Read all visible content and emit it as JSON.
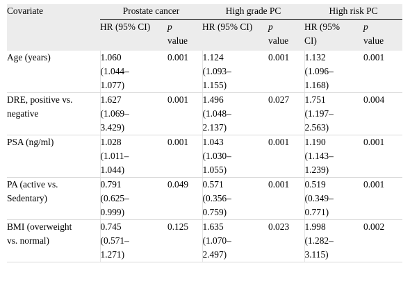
{
  "header": {
    "covariate": "Covariate",
    "groups": [
      "Prostate cancer",
      "High grade PC",
      "High risk PC"
    ],
    "hr": [
      "HR (95% CI)",
      "HR (95% CI)",
      "HR (95%",
      "CI)"
    ],
    "p_italic": "p",
    "p_value": "value"
  },
  "rows": [
    {
      "label": [
        "Age (years)"
      ],
      "cells": [
        {
          "hr": [
            "1.060",
            "(1.044–",
            "1.077)"
          ],
          "p": "0.001"
        },
        {
          "hr": [
            "1.124",
            "(1.093–",
            "1.155)"
          ],
          "p": "0.001"
        },
        {
          "hr": [
            "1.132",
            "(1.096–",
            "1.168)"
          ],
          "p": "0.001"
        }
      ]
    },
    {
      "label": [
        "DRE, positive vs.",
        "negative"
      ],
      "cells": [
        {
          "hr": [
            "1.627",
            "(1.069–",
            "3.429)"
          ],
          "p": "0.001"
        },
        {
          "hr": [
            "1.496",
            "(1.048–",
            "2.137)"
          ],
          "p": "0.027"
        },
        {
          "hr": [
            "1.751",
            "(1.197–",
            "2.563)"
          ],
          "p": "0.004"
        }
      ]
    },
    {
      "label": [
        "PSA (ng/ml)"
      ],
      "cells": [
        {
          "hr": [
            "1.028",
            "(1.011–",
            "1.044)"
          ],
          "p": "0.001"
        },
        {
          "hr": [
            "1.043",
            "(1.030–",
            "1.055)"
          ],
          "p": "0.001"
        },
        {
          "hr": [
            "1.190",
            "(1.143–",
            "1.239)"
          ],
          "p": "0.001"
        }
      ]
    },
    {
      "label": [
        "PA (active vs.",
        "Sedentary)"
      ],
      "cells": [
        {
          "hr": [
            "0.791",
            "(0.625–",
            "0.999)"
          ],
          "p": "0.049"
        },
        {
          "hr": [
            "0.571",
            "(0.356–",
            "0.759)"
          ],
          "p": "0.001"
        },
        {
          "hr": [
            "0.519",
            "(0.349–",
            "0.771)"
          ],
          "p": "0.001"
        }
      ]
    },
    {
      "label": [
        "BMI (overweight",
        "vs. normal)"
      ],
      "cells": [
        {
          "hr": [
            "0.745",
            "(0.571–",
            "1.271)"
          ],
          "p": "0.125"
        },
        {
          "hr": [
            "1.635",
            "(1.070–",
            "2.497)"
          ],
          "p": "0.023"
        },
        {
          "hr": [
            "1.998",
            "(1.282–",
            "3.115)"
          ],
          "p": "0.002"
        }
      ]
    }
  ]
}
